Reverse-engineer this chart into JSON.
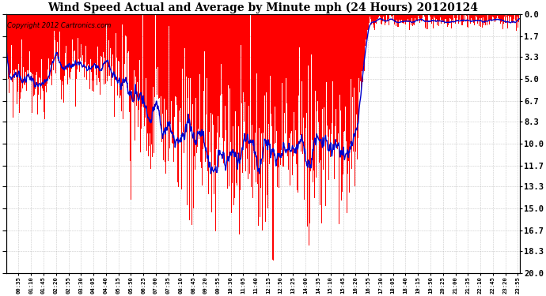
{
  "title": "Wind Speed Actual and Average by Minute mph (24 Hours) 20120124",
  "copyright": "Copyright 2012 Cartronics.com",
  "ylabel_right": [
    "20.0",
    "18.3",
    "16.7",
    "15.0",
    "13.3",
    "11.7",
    "10.0",
    "8.3",
    "6.7",
    "5.0",
    "3.3",
    "1.7",
    "0.0"
  ],
  "ytick_vals": [
    20.0,
    18.3,
    16.7,
    15.0,
    13.3,
    11.7,
    10.0,
    8.3,
    6.7,
    5.0,
    3.3,
    1.7,
    0.0
  ],
  "ylim": [
    20.0,
    0.0
  ],
  "bar_color": "#FF0000",
  "line_color": "#0000CC",
  "bg_color": "#FFFFFF",
  "grid_color": "#BBBBBB",
  "title_fontsize": 10,
  "copyright_fontsize": 6,
  "total_minutes": 1440,
  "figwidth": 6.9,
  "figheight": 3.75,
  "dpi": 100
}
